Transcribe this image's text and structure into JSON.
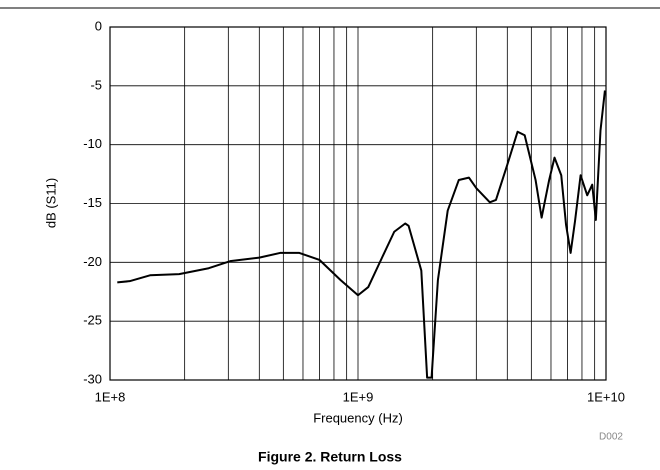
{
  "chart_data": {
    "type": "line",
    "title": "Figure 2. Return Loss",
    "note": "D002",
    "xlabel": "Frequency (Hz)",
    "ylabel": "dB (S11)",
    "xscale": "log",
    "grid": true,
    "xlim": [
      100000000,
      10000000000
    ],
    "ylim": [
      -30,
      0
    ],
    "xticks": [
      {
        "value": 100000000,
        "label": "1E+8"
      },
      {
        "value": 1000000000,
        "label": "1E+9"
      },
      {
        "value": 10000000000,
        "label": "1E+10"
      }
    ],
    "xminorticks": [
      200000000,
      300000000,
      400000000,
      500000000,
      600000000,
      700000000,
      800000000,
      900000000,
      2000000000,
      3000000000,
      4000000000,
      5000000000,
      6000000000,
      7000000000,
      8000000000,
      9000000000
    ],
    "yticks": [
      -30,
      -25,
      -20,
      -15,
      -10,
      -5,
      0
    ],
    "series": [
      {
        "name": "S11",
        "color": "#000000",
        "x": [
          107000000,
          120000000,
          145000000,
          190000000,
          250000000,
          305000000,
          400000000,
          485000000,
          580000000,
          700000000,
          850000000,
          1000000000,
          1100000000,
          1250000000,
          1400000000,
          1550000000,
          1600000000,
          1800000000,
          1900000000,
          1980000000,
          2100000000,
          2300000000,
          2550000000,
          2800000000,
          3000000000,
          3400000000,
          3600000000,
          4000000000,
          4400000000,
          4700000000,
          5200000000,
          5500000000,
          5900000000,
          6200000000,
          6600000000,
          6900000000,
          7200000000,
          7500000000,
          7900000000,
          8400000000,
          8800000000,
          9100000000,
          9500000000,
          9900000000
        ],
        "values": [
          -21.7,
          -21.6,
          -21.1,
          -21.0,
          -20.5,
          -19.9,
          -19.6,
          -19.2,
          -19.2,
          -19.8,
          -21.5,
          -22.8,
          -22.1,
          -19.6,
          -17.4,
          -16.7,
          -16.9,
          -20.7,
          -29.8,
          -29.8,
          -21.5,
          -15.6,
          -13.0,
          -12.8,
          -13.7,
          -14.9,
          -14.7,
          -11.7,
          -8.9,
          -9.2,
          -13.0,
          -16.2,
          -13.0,
          -11.1,
          -12.6,
          -16.8,
          -19.2,
          -16.5,
          -12.6,
          -14.3,
          -13.4,
          -16.4,
          -8.8,
          -5.4
        ]
      }
    ]
  }
}
